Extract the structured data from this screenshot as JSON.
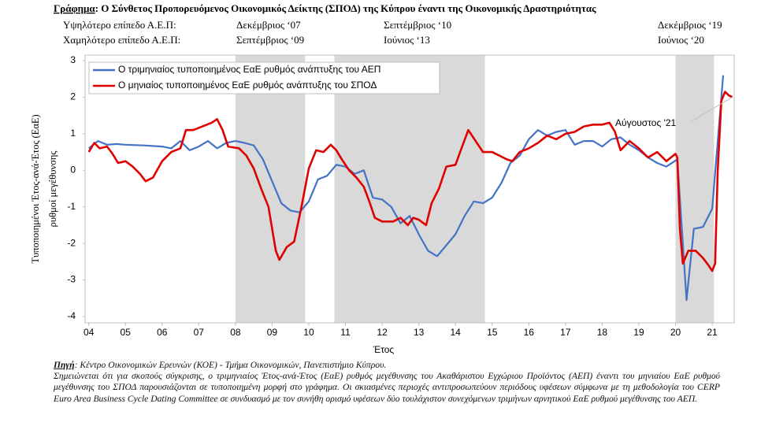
{
  "chart_data": {
    "type": "line",
    "title_label": "Γράφημα",
    "title": ": Ο Σύνθετος Προπορευόμενος Οικονομικός Δείκτης (ΣΠΟΔ) της Κύπρου έναντι της Οικονομικής  Δραστηριότητας",
    "peaks_table": [
      [
        "Υψηλότερο επίπεδο Α.Ε.Π:",
        "Δεκέμβριος ‘07",
        "Σεπτέμβριος ‘10",
        "Δεκέμβριος ‘19"
      ],
      [
        "Χαμηλότερο επίπεδο Α.Ε.Π:",
        "Σεπτέμβριος ‘09",
        "Ιούνιος ‘13",
        "Ιούνιος ‘20"
      ]
    ],
    "ylabel": [
      "Τυποποιημένοι Έτος-ανά-Έτος (ΕαΕ)",
      "ρυθμοί μεγέθυνσης"
    ],
    "xlabel": "Έτος",
    "annotation": "Αύγουστος '21",
    "xlim": [
      2003.9,
      2021.6
    ],
    "ylim": [
      -4,
      3
    ],
    "yticks": [
      -4,
      -3,
      -2,
      -1,
      0,
      1,
      2,
      3
    ],
    "xticks": [
      {
        "value": 2004,
        "label": "04"
      },
      {
        "value": 2005,
        "label": "05"
      },
      {
        "value": 2006,
        "label": "06"
      },
      {
        "value": 2007,
        "label": "07"
      },
      {
        "value": 2008,
        "label": "08"
      },
      {
        "value": 2009,
        "label": "09"
      },
      {
        "value": 2010,
        "label": "10"
      },
      {
        "value": 2011,
        "label": "11"
      },
      {
        "value": 2012,
        "label": "12"
      },
      {
        "value": 2013,
        "label": "13"
      },
      {
        "value": 2014,
        "label": "14"
      },
      {
        "value": 2015,
        "label": "15"
      },
      {
        "value": 2016,
        "label": "16"
      },
      {
        "value": 2017,
        "label": "17"
      },
      {
        "value": 2018,
        "label": "18"
      },
      {
        "value": 2019,
        "label": "19"
      },
      {
        "value": 2020,
        "label": "20"
      },
      {
        "value": 2021,
        "label": "21"
      }
    ],
    "grid": false,
    "legend": "upper left",
    "shade_color": "#d9d9d9",
    "shaded_periods": [
      [
        2008.0,
        2009.9
      ],
      [
        2010.7,
        2014.8
      ],
      [
        2020.0,
        2021.05
      ]
    ],
    "series": [
      {
        "name": "Ο τριμηνιαίος τυποποιημένος ΕαΕ ρυθμός ανάπτυξης του ΑΕΠ",
        "color": "#4472c4",
        "x": [
          2004.0,
          2004.25,
          2004.5,
          2004.75,
          2005.0,
          2005.5,
          2006.0,
          2006.25,
          2006.5,
          2006.75,
          2007.0,
          2007.25,
          2007.5,
          2007.75,
          2008.0,
          2008.25,
          2008.5,
          2008.75,
          2009.0,
          2009.25,
          2009.5,
          2009.75,
          2010.0,
          2010.25,
          2010.5,
          2010.75,
          2011.0,
          2011.25,
          2011.5,
          2011.75,
          2012.0,
          2012.25,
          2012.5,
          2012.75,
          2013.0,
          2013.25,
          2013.5,
          2013.75,
          2014.0,
          2014.25,
          2014.5,
          2014.75,
          2015.0,
          2015.25,
          2015.5,
          2015.75,
          2016.0,
          2016.25,
          2016.5,
          2016.75,
          2017.0,
          2017.25,
          2017.5,
          2017.75,
          2018.0,
          2018.25,
          2018.5,
          2018.75,
          2019.0,
          2019.25,
          2019.5,
          2019.75,
          2020.05,
          2020.3,
          2020.5,
          2020.75,
          2021.0,
          2021.3
        ],
        "values": [
          0.6,
          0.8,
          0.7,
          0.72,
          0.7,
          0.68,
          0.65,
          0.6,
          0.8,
          0.55,
          0.65,
          0.8,
          0.6,
          0.75,
          0.8,
          0.75,
          0.68,
          0.3,
          -0.3,
          -0.9,
          -1.1,
          -1.15,
          -0.85,
          -0.25,
          -0.15,
          0.15,
          0.1,
          -0.1,
          0.0,
          -0.75,
          -0.8,
          -1.0,
          -1.45,
          -1.25,
          -1.75,
          -2.2,
          -2.35,
          -2.05,
          -1.75,
          -1.25,
          -0.85,
          -0.9,
          -0.75,
          -0.35,
          0.2,
          0.4,
          0.85,
          1.1,
          0.95,
          1.05,
          1.1,
          0.7,
          0.8,
          0.8,
          0.65,
          0.85,
          0.9,
          0.7,
          0.55,
          0.35,
          0.2,
          0.1,
          0.3,
          -3.55,
          -1.6,
          -1.55,
          -1.05,
          2.6
        ]
      },
      {
        "name": "Ο μηνιαίος τυποποιημένος ΕαΕ ρυθμός ανάπτυξης του ΣΠΟΔ",
        "color": "#e00000",
        "x": [
          2004.0,
          2004.15,
          2004.3,
          2004.5,
          2004.65,
          2004.8,
          2005.0,
          2005.2,
          2005.4,
          2005.55,
          2005.75,
          2006.0,
          2006.25,
          2006.5,
          2006.65,
          2006.85,
          2007.1,
          2007.35,
          2007.5,
          2007.65,
          2007.8,
          2008.1,
          2008.3,
          2008.5,
          2008.7,
          2008.9,
          2009.1,
          2009.2,
          2009.4,
          2009.6,
          2009.8,
          2010.0,
          2010.2,
          2010.4,
          2010.6,
          2010.75,
          2010.9,
          2011.1,
          2011.3,
          2011.5,
          2011.65,
          2011.8,
          2012.0,
          2012.3,
          2012.5,
          2012.7,
          2012.85,
          2013.0,
          2013.2,
          2013.35,
          2013.55,
          2013.75,
          2014.0,
          2014.2,
          2014.35,
          2014.55,
          2014.75,
          2015.0,
          2015.2,
          2015.4,
          2015.55,
          2015.75,
          2016.0,
          2016.25,
          2016.5,
          2016.75,
          2017.0,
          2017.25,
          2017.5,
          2017.75,
          2018.0,
          2018.2,
          2018.35,
          2018.5,
          2018.75,
          2019.0,
          2019.25,
          2019.5,
          2019.75,
          2020.0,
          2020.05,
          2020.12,
          2020.2,
          2020.35,
          2020.55,
          2020.75,
          2020.9,
          2021.0,
          2021.08,
          2021.15,
          2021.25,
          2021.35,
          2021.45,
          2021.55
        ],
        "values": [
          0.5,
          0.75,
          0.6,
          0.65,
          0.45,
          0.2,
          0.25,
          0.1,
          -0.1,
          -0.3,
          -0.2,
          0.25,
          0.5,
          0.6,
          1.1,
          1.1,
          1.2,
          1.3,
          1.4,
          1.1,
          0.65,
          0.6,
          0.4,
          0.05,
          -0.5,
          -1.0,
          -2.2,
          -2.45,
          -2.1,
          -1.95,
          -1.0,
          0.05,
          0.55,
          0.5,
          0.7,
          0.55,
          0.3,
          0.0,
          -0.2,
          -0.45,
          -0.85,
          -1.3,
          -1.4,
          -1.4,
          -1.3,
          -1.5,
          -1.3,
          -1.35,
          -1.5,
          -0.9,
          -0.5,
          0.1,
          0.15,
          0.7,
          1.1,
          0.8,
          0.5,
          0.5,
          0.4,
          0.3,
          0.25,
          0.5,
          0.6,
          0.75,
          0.95,
          0.85,
          1.0,
          1.05,
          1.2,
          1.25,
          1.25,
          1.3,
          1.05,
          0.55,
          0.8,
          0.6,
          0.35,
          0.5,
          0.25,
          0.45,
          0.35,
          -1.6,
          -2.55,
          -2.2,
          -2.2,
          -2.4,
          -2.6,
          -2.75,
          -2.55,
          0.0,
          1.9,
          2.15,
          2.05,
          2.0
        ]
      }
    ],
    "source_label": "Πηγή",
    "source": ": Κέντρο Οικονομικών Ερευνών (ΚΟΕ) - Τμήμα Οικονομικών, Πανεπιστήμιο Κύπρου.",
    "note": "Σημειώνεται ότι για σκοπούς σύγκρισης, ο τριμηνιαίος Έτος-ανά-Έτος (ΕαΕ) ρυθμός μεγέθυνσης του Ακαθάριστου Εγχώριου Προϊόντος (ΑΕΠ) έναντι του μηνιαίου ΕαΕ ρυθμού μεγέθυνσης του ΣΠΟΔ παρουσιάζονται σε τυποποιημένη μορφή στο γράφημα. Οι σκιασμένες περιοχές αντιπροσωπεύουν περιόδους υφέσεων σύμφωνα με τη μεθοδολογία του CERP Euro Area Business Cycle Dating Committee σε συνδυασμό με τον συνήθη ορισμό υφέσεων δύο τουλάχιστον συνεχόμενων τριμήνων αρνητικού ΕαΕ ρυθμού μεγέθυνσης του ΑΕΠ."
  }
}
